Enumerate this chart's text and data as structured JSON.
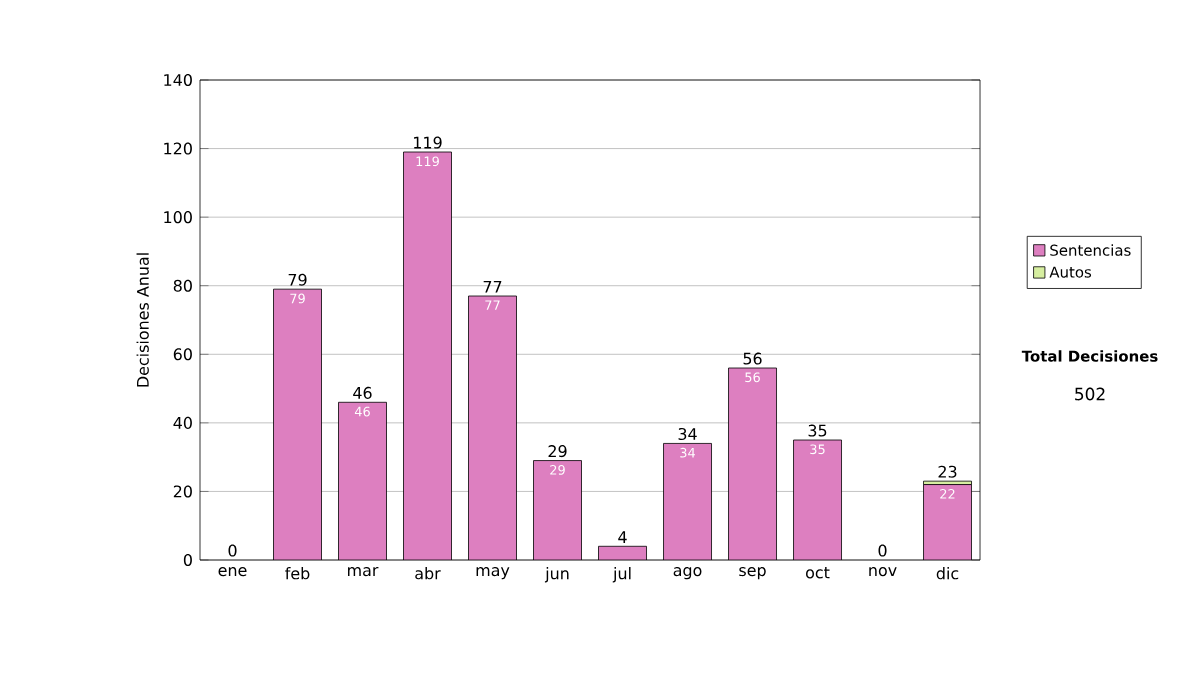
{
  "chart_data": {
    "type": "bar",
    "stacked": true,
    "ylabel": "Decisiones Anual",
    "categories": [
      "ene",
      "feb",
      "mar",
      "abr",
      "may",
      "jun",
      "jul",
      "ago",
      "sep",
      "oct",
      "nov",
      "dic"
    ],
    "series": [
      {
        "name": "Sentencias",
        "color": "#dd7fc0",
        "values": [
          0,
          79,
          46,
          119,
          77,
          29,
          4,
          34,
          56,
          35,
          0,
          22
        ],
        "value_labels": [
          null,
          "79",
          "46",
          "119",
          "77",
          "29",
          null,
          "34",
          "56",
          "35",
          null,
          "22"
        ]
      },
      {
        "name": "Autos",
        "color": "#d6eea0",
        "values": [
          0,
          0,
          0,
          0,
          0,
          0,
          0,
          0,
          0,
          0,
          0,
          1
        ]
      }
    ],
    "totals": [
      "0",
      "79",
      "46",
      "119",
      "77",
      "29",
      "4",
      "34",
      "56",
      "35",
      "0",
      "23"
    ],
    "ylim": [
      0,
      140
    ],
    "yticks": [
      0,
      20,
      40,
      60,
      80,
      100,
      120,
      140
    ],
    "grid": "y",
    "legend": "right",
    "annotations": [
      "Total Decisiones",
      "502"
    ]
  }
}
